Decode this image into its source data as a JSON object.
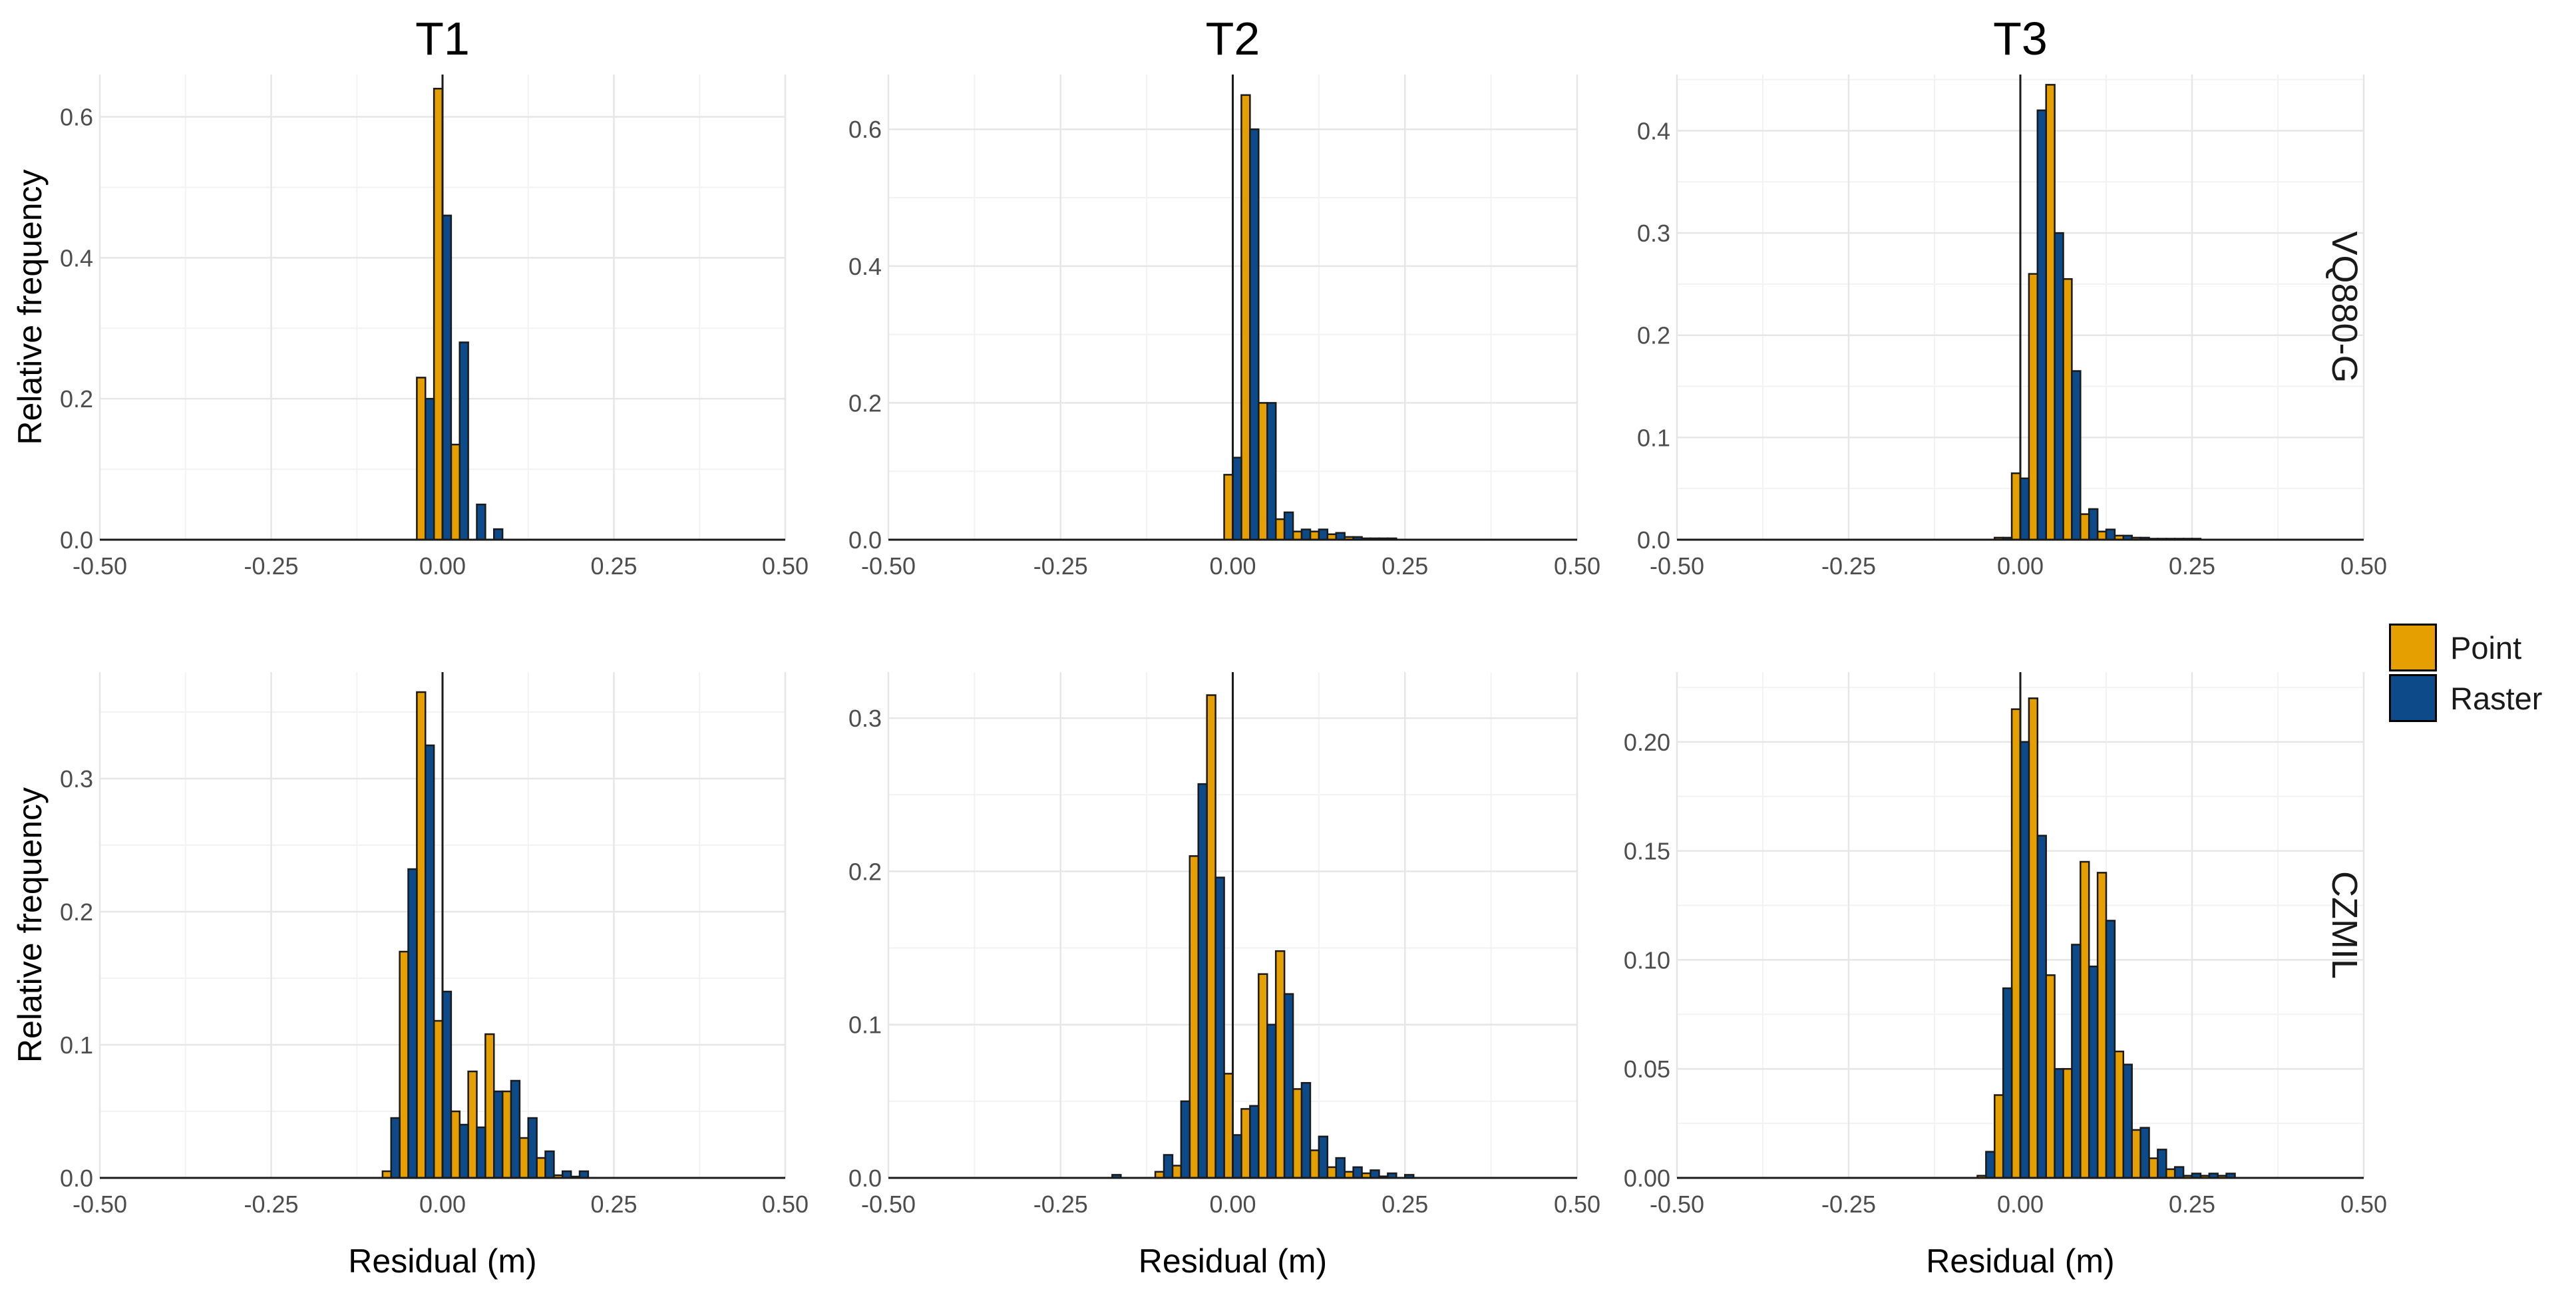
{
  "colors": {
    "Point": "#E69F00",
    "Raster": "#0D4A8A"
  },
  "legend": {
    "items": [
      "Point",
      "Raster"
    ]
  },
  "columns": [
    "T1",
    "T2",
    "T3"
  ],
  "rows": [
    "VQ880-G",
    "CZMIL"
  ],
  "axis_labels": {
    "x": "Residual (m)",
    "y": "Relative frequency"
  },
  "chart_data": [
    {
      "type": "bar",
      "column": "T1",
      "row": "VQ880-G",
      "xlim": [
        -0.5,
        0.5
      ],
      "ylim": [
        0,
        0.66
      ],
      "yticks": [
        0,
        0.2,
        0.4,
        0.6
      ],
      "ytick_labels": [
        "0.0",
        "0.2",
        "0.4",
        "0.6"
      ],
      "xticks": [
        -0.5,
        -0.25,
        0,
        0.25,
        0.5
      ],
      "xtick_labels": [
        "-0.50",
        "-0.25",
        "0.00",
        "0.25",
        "0.50"
      ],
      "bin_width": 0.025,
      "series": [
        {
          "name": "Point",
          "x": [
            -0.025,
            0,
            0.025,
            0.05,
            0.075
          ],
          "values": [
            0.23,
            0.64,
            0.135,
            0.0,
            0.0
          ]
        },
        {
          "name": "Raster",
          "x": [
            -0.025,
            0,
            0.025,
            0.05,
            0.075
          ],
          "values": [
            0.2,
            0.46,
            0.28,
            0.05,
            0.015
          ]
        }
      ]
    },
    {
      "type": "bar",
      "column": "T2",
      "row": "VQ880-G",
      "xlim": [
        -0.5,
        0.5
      ],
      "ylim": [
        0,
        0.68
      ],
      "yticks": [
        0,
        0.2,
        0.4,
        0.6
      ],
      "ytick_labels": [
        "0.0",
        "0.2",
        "0.4",
        "0.6"
      ],
      "xticks": [
        -0.5,
        -0.25,
        0,
        0.25,
        0.5
      ],
      "xtick_labels": [
        "-0.50",
        "-0.25",
        "0.00",
        "0.25",
        "0.50"
      ],
      "bin_width": 0.025,
      "series": [
        {
          "name": "Point",
          "x": [
            0,
            0.025,
            0.05,
            0.075,
            0.1,
            0.125,
            0.15,
            0.175,
            0.2,
            0.225
          ],
          "values": [
            0.095,
            0.65,
            0.2,
            0.03,
            0.012,
            0.012,
            0.008,
            0.004,
            0.002,
            0.002
          ]
        },
        {
          "name": "Raster",
          "x": [
            0,
            0.025,
            0.05,
            0.075,
            0.1,
            0.125,
            0.15,
            0.175,
            0.2,
            0.225
          ],
          "values": [
            0.12,
            0.6,
            0.2,
            0.04,
            0.015,
            0.015,
            0.01,
            0.004,
            0.002,
            0.002
          ]
        }
      ]
    },
    {
      "type": "bar",
      "column": "T3",
      "row": "VQ880-G",
      "xlim": [
        -0.5,
        0.5
      ],
      "ylim": [
        0,
        0.455
      ],
      "yticks": [
        0,
        0.1,
        0.2,
        0.3,
        0.4
      ],
      "ytick_labels": [
        "0.0",
        "0.1",
        "0.2",
        "0.3",
        "0.4"
      ],
      "xticks": [
        -0.5,
        -0.25,
        0,
        0.25,
        0.5
      ],
      "xtick_labels": [
        "-0.50",
        "-0.25",
        "0.00",
        "0.25",
        "0.50"
      ],
      "bin_width": 0.025,
      "series": [
        {
          "name": "Point",
          "x": [
            -0.025,
            0,
            0.025,
            0.05,
            0.075,
            0.1,
            0.125,
            0.15,
            0.175,
            0.2,
            0.225,
            0.25
          ],
          "values": [
            0.002,
            0.065,
            0.26,
            0.445,
            0.255,
            0.025,
            0.008,
            0.004,
            0.002,
            0.001,
            0.001,
            0.001
          ]
        },
        {
          "name": "Raster",
          "x": [
            -0.025,
            0,
            0.025,
            0.05,
            0.075,
            0.1,
            0.125,
            0.15,
            0.175,
            0.2,
            0.225,
            0.25
          ],
          "values": [
            0.002,
            0.06,
            0.42,
            0.3,
            0.165,
            0.03,
            0.01,
            0.004,
            0.002,
            0.001,
            0.001,
            0.001
          ]
        }
      ]
    },
    {
      "type": "bar",
      "column": "T1",
      "row": "CZMIL",
      "xlim": [
        -0.5,
        0.5
      ],
      "ylim": [
        0,
        0.38
      ],
      "yticks": [
        0,
        0.1,
        0.2,
        0.3
      ],
      "ytick_labels": [
        "0.0",
        "0.1",
        "0.2",
        "0.3"
      ],
      "xticks": [
        -0.5,
        -0.25,
        0,
        0.25,
        0.5
      ],
      "xtick_labels": [
        "-0.50",
        "-0.25",
        "0.00",
        "0.25",
        "0.50"
      ],
      "bin_width": 0.025,
      "series": [
        {
          "name": "Point",
          "x": [
            -0.075,
            -0.05,
            -0.025,
            0,
            0.025,
            0.05,
            0.075,
            0.1,
            0.125,
            0.15,
            0.175,
            0.2
          ],
          "values": [
            0.005,
            0.17,
            0.365,
            0.118,
            0.05,
            0.08,
            0.108,
            0.065,
            0.03,
            0.015,
            0.002,
            0.001
          ]
        },
        {
          "name": "Raster",
          "x": [
            -0.075,
            -0.05,
            -0.025,
            0,
            0.025,
            0.05,
            0.075,
            0.1,
            0.125,
            0.15,
            0.175,
            0.2
          ],
          "values": [
            0.045,
            0.232,
            0.325,
            0.14,
            0.04,
            0.038,
            0.065,
            0.073,
            0.045,
            0.02,
            0.005,
            0.005
          ]
        }
      ]
    },
    {
      "type": "bar",
      "column": "T2",
      "row": "CZMIL",
      "xlim": [
        -0.5,
        0.5
      ],
      "ylim": [
        0,
        0.33
      ],
      "yticks": [
        0,
        0.1,
        0.2,
        0.3
      ],
      "ytick_labels": [
        "0.0",
        "0.1",
        "0.2",
        "0.3"
      ],
      "xticks": [
        -0.5,
        -0.25,
        0,
        0.25,
        0.5
      ],
      "xtick_labels": [
        "-0.50",
        "-0.25",
        "0.00",
        "0.25",
        "0.50"
      ],
      "bin_width": 0.025,
      "series": [
        {
          "name": "Point",
          "x": [
            -0.175,
            -0.1,
            -0.075,
            -0.05,
            -0.025,
            0,
            0.025,
            0.05,
            0.075,
            0.1,
            0.125,
            0.15,
            0.175,
            0.2,
            0.225,
            0.25
          ],
          "values": [
            0.0,
            0.004,
            0.008,
            0.21,
            0.315,
            0.068,
            0.045,
            0.133,
            0.148,
            0.058,
            0.018,
            0.007,
            0.004,
            0.003,
            0.001,
            0.0
          ]
        },
        {
          "name": "Raster",
          "x": [
            -0.175,
            -0.1,
            -0.075,
            -0.05,
            -0.025,
            0,
            0.025,
            0.05,
            0.075,
            0.1,
            0.125,
            0.15,
            0.175,
            0.2,
            0.225,
            0.25
          ],
          "values": [
            0.002,
            0.015,
            0.05,
            0.257,
            0.196,
            0.028,
            0.047,
            0.1,
            0.12,
            0.062,
            0.027,
            0.013,
            0.007,
            0.005,
            0.003,
            0.002
          ]
        }
      ]
    },
    {
      "type": "bar",
      "column": "T3",
      "row": "CZMIL",
      "xlim": [
        -0.5,
        0.5
      ],
      "ylim": [
        0,
        0.232
      ],
      "yticks": [
        0,
        0.05,
        0.1,
        0.15,
        0.2
      ],
      "ytick_labels": [
        "0.00",
        "0.05",
        "0.10",
        "0.15",
        "0.20"
      ],
      "xticks": [
        -0.5,
        -0.25,
        0,
        0.25,
        0.5
      ],
      "xtick_labels": [
        "-0.50",
        "-0.25",
        "0.00",
        "0.25",
        "0.50"
      ],
      "bin_width": 0.025,
      "series": [
        {
          "name": "Point",
          "x": [
            -0.05,
            -0.025,
            0,
            0.025,
            0.05,
            0.075,
            0.1,
            0.125,
            0.15,
            0.175,
            0.2,
            0.225,
            0.25,
            0.275,
            0.3
          ],
          "values": [
            0.001,
            0.038,
            0.215,
            0.22,
            0.093,
            0.05,
            0.145,
            0.14,
            0.058,
            0.022,
            0.009,
            0.004,
            0.001,
            0.001,
            0.001
          ]
        },
        {
          "name": "Raster",
          "x": [
            -0.05,
            -0.025,
            0,
            0.025,
            0.05,
            0.075,
            0.1,
            0.125,
            0.15,
            0.175,
            0.2,
            0.225,
            0.25,
            0.275,
            0.3
          ],
          "values": [
            0.012,
            0.087,
            0.2,
            0.157,
            0.05,
            0.107,
            0.097,
            0.118,
            0.052,
            0.023,
            0.013,
            0.005,
            0.002,
            0.002,
            0.002
          ]
        }
      ]
    }
  ]
}
